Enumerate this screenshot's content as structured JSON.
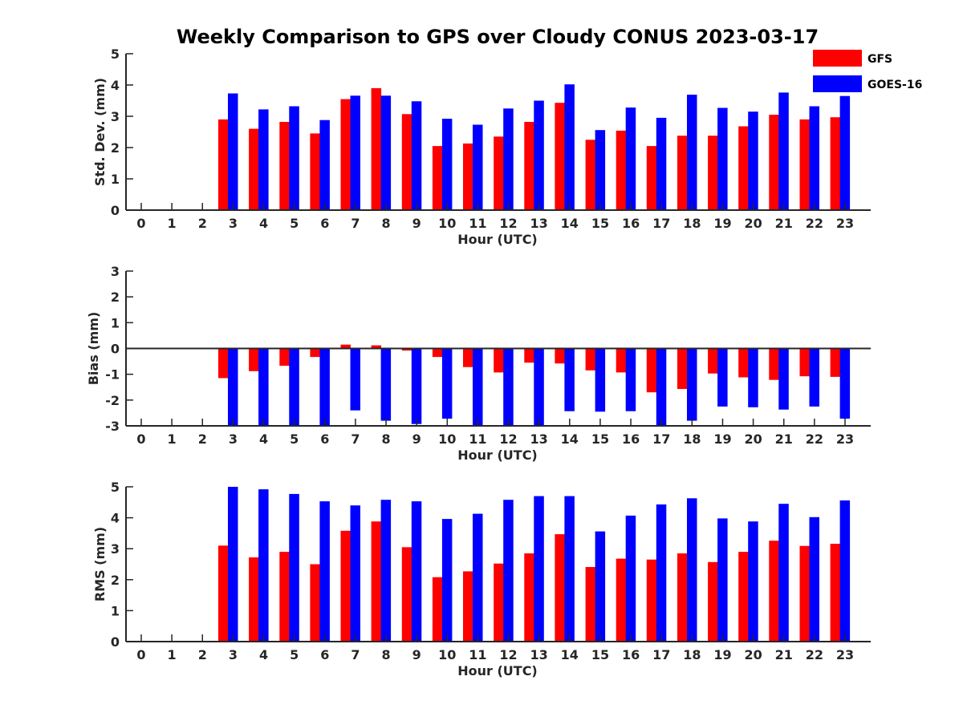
{
  "title": "Weekly Comparison to GPS over Cloudy CONUS 2023-03-17",
  "colors": {
    "GFS": "#ff0000",
    "GOES-16": "#0000ff",
    "axis": "#262626"
  },
  "chart_data": [
    {
      "type": "bar",
      "title": "Weekly Comparison to GPS over Cloudy CONUS 2023-03-17",
      "xlabel": "Hour (UTC)",
      "ylabel": "Std. Dev. (mm)",
      "ylim": [
        0,
        5
      ],
      "yticks": [
        0,
        1,
        2,
        3,
        4,
        5
      ],
      "categories": [
        "0",
        "1",
        "2",
        "3",
        "4",
        "5",
        "6",
        "7",
        "8",
        "9",
        "10",
        "11",
        "12",
        "13",
        "14",
        "15",
        "16",
        "17",
        "18",
        "19",
        "20",
        "21",
        "22",
        "23"
      ],
      "legend": "top-right",
      "series": [
        {
          "name": "GFS",
          "values": [
            null,
            null,
            null,
            2.9,
            2.6,
            2.82,
            2.45,
            3.55,
            3.9,
            3.07,
            2.05,
            2.13,
            2.35,
            2.82,
            3.43,
            2.25,
            2.54,
            2.05,
            2.38,
            2.38,
            2.68,
            3.05,
            2.9,
            2.97
          ]
        },
        {
          "name": "GOES-16",
          "values": [
            null,
            null,
            null,
            3.73,
            3.22,
            3.32,
            2.88,
            3.66,
            3.66,
            3.48,
            2.92,
            2.73,
            3.25,
            3.5,
            4.02,
            2.56,
            3.28,
            2.95,
            3.69,
            3.27,
            3.15,
            3.76,
            3.32,
            3.65
          ]
        }
      ]
    },
    {
      "type": "bar",
      "xlabel": "Hour (UTC)",
      "ylabel": "Bias (mm)",
      "ylim": [
        -3,
        3
      ],
      "yticks": [
        -3,
        -2,
        -1,
        0,
        1,
        2,
        3
      ],
      "categories": [
        "0",
        "1",
        "2",
        "3",
        "4",
        "5",
        "6",
        "7",
        "8",
        "9",
        "10",
        "11",
        "12",
        "13",
        "14",
        "15",
        "16",
        "17",
        "18",
        "19",
        "20",
        "21",
        "22",
        "23"
      ],
      "series": [
        {
          "name": "GFS",
          "values": [
            null,
            null,
            null,
            -1.15,
            -0.88,
            -0.67,
            -0.33,
            0.15,
            0.12,
            -0.08,
            -0.33,
            -0.72,
            -0.93,
            -0.55,
            -0.58,
            -0.85,
            -0.93,
            -1.7,
            -1.57,
            -0.97,
            -1.12,
            -1.22,
            -1.08,
            -1.1
          ]
        },
        {
          "name": "GOES-16",
          "values": [
            null,
            null,
            null,
            -3.3,
            -3.3,
            -3.3,
            -3.3,
            -2.4,
            -2.8,
            -2.93,
            -2.72,
            -3.3,
            -3.3,
            -3.3,
            -2.43,
            -2.45,
            -2.43,
            -3.3,
            -2.8,
            -2.25,
            -2.28,
            -2.37,
            -2.25,
            -2.72
          ]
        }
      ]
    },
    {
      "type": "bar",
      "xlabel": "Hour (UTC)",
      "ylabel": "RMS (mm)",
      "ylim": [
        0,
        5
      ],
      "yticks": [
        0,
        1,
        2,
        3,
        4,
        5
      ],
      "categories": [
        "0",
        "1",
        "2",
        "3",
        "4",
        "5",
        "6",
        "7",
        "8",
        "9",
        "10",
        "11",
        "12",
        "13",
        "14",
        "15",
        "16",
        "17",
        "18",
        "19",
        "20",
        "21",
        "22",
        "23"
      ],
      "series": [
        {
          "name": "GFS",
          "values": [
            null,
            null,
            null,
            3.1,
            2.72,
            2.9,
            2.5,
            3.58,
            3.88,
            3.05,
            2.08,
            2.27,
            2.52,
            2.85,
            3.47,
            2.41,
            2.68,
            2.65,
            2.85,
            2.57,
            2.9,
            3.26,
            3.09,
            3.16
          ]
        },
        {
          "name": "GOES-16",
          "values": [
            null,
            null,
            null,
            5.0,
            4.92,
            4.77,
            4.53,
            4.4,
            4.58,
            4.53,
            3.96,
            4.13,
            4.58,
            4.7,
            4.7,
            3.56,
            4.07,
            4.43,
            4.63,
            3.98,
            3.88,
            4.45,
            4.02,
            4.56
          ]
        }
      ]
    }
  ]
}
